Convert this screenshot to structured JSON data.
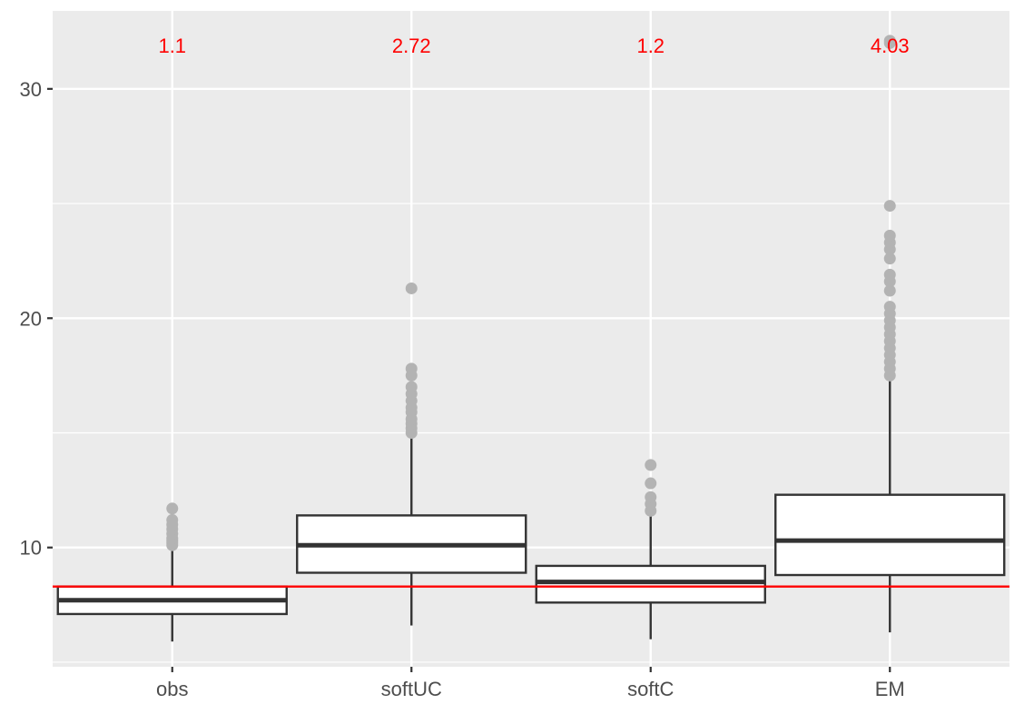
{
  "chart_data": {
    "type": "box",
    "categories": [
      "obs",
      "softUC",
      "softC",
      "EM"
    ],
    "ylim": [
      4.8,
      33.4
    ],
    "y_ticks": [
      10,
      20,
      30
    ],
    "y_minor_ticks": [
      5,
      15,
      25
    ],
    "grid": true,
    "reference_line": {
      "y": 8.3,
      "color": "#ff0000"
    },
    "boxes": [
      {
        "category": "obs",
        "whisker_low": 5.9,
        "q1": 7.1,
        "median": 7.7,
        "q3": 8.3,
        "whisker_high": 10.0,
        "outliers": [
          10.1,
          10.2,
          10.3,
          10.4,
          10.6,
          10.8,
          11.0,
          11.2,
          11.7
        ]
      },
      {
        "category": "softUC",
        "whisker_low": 6.6,
        "q1": 8.9,
        "median": 10.1,
        "q3": 11.4,
        "whisker_high": 14.8,
        "outliers": [
          15.0,
          15.2,
          15.4,
          15.6,
          15.9,
          16.1,
          16.4,
          16.7,
          17.0,
          17.5,
          17.8,
          21.3
        ]
      },
      {
        "category": "softC",
        "whisker_low": 6.0,
        "q1": 7.6,
        "median": 8.5,
        "q3": 9.2,
        "whisker_high": 11.4,
        "outliers": [
          11.6,
          11.9,
          12.2,
          12.8,
          13.6
        ]
      },
      {
        "category": "EM",
        "whisker_low": 6.3,
        "q1": 8.8,
        "median": 10.3,
        "q3": 12.3,
        "whisker_high": 17.3,
        "outliers": [
          17.5,
          17.8,
          18.1,
          18.4,
          18.7,
          19.0,
          19.3,
          19.6,
          19.9,
          20.2,
          20.5,
          21.2,
          21.6,
          21.9,
          22.6,
          23.0,
          23.3,
          23.6,
          24.9,
          32.0,
          32.1
        ]
      }
    ],
    "annotations": [
      {
        "category": "obs",
        "text": "1.1"
      },
      {
        "category": "softUC",
        "text": "2.72"
      },
      {
        "category": "softC",
        "text": "1.2"
      },
      {
        "category": "EM",
        "text": "4.03"
      }
    ]
  },
  "colors": {
    "panel_background": "#ebebeb",
    "gridline": "#ffffff",
    "box_fill": "#ffffff",
    "box_stroke": "#333333",
    "outlier": "#b3b3b3",
    "annotation": "#ff0000",
    "reference_line": "#ff0000",
    "axis_text": "#4d4d4d"
  }
}
